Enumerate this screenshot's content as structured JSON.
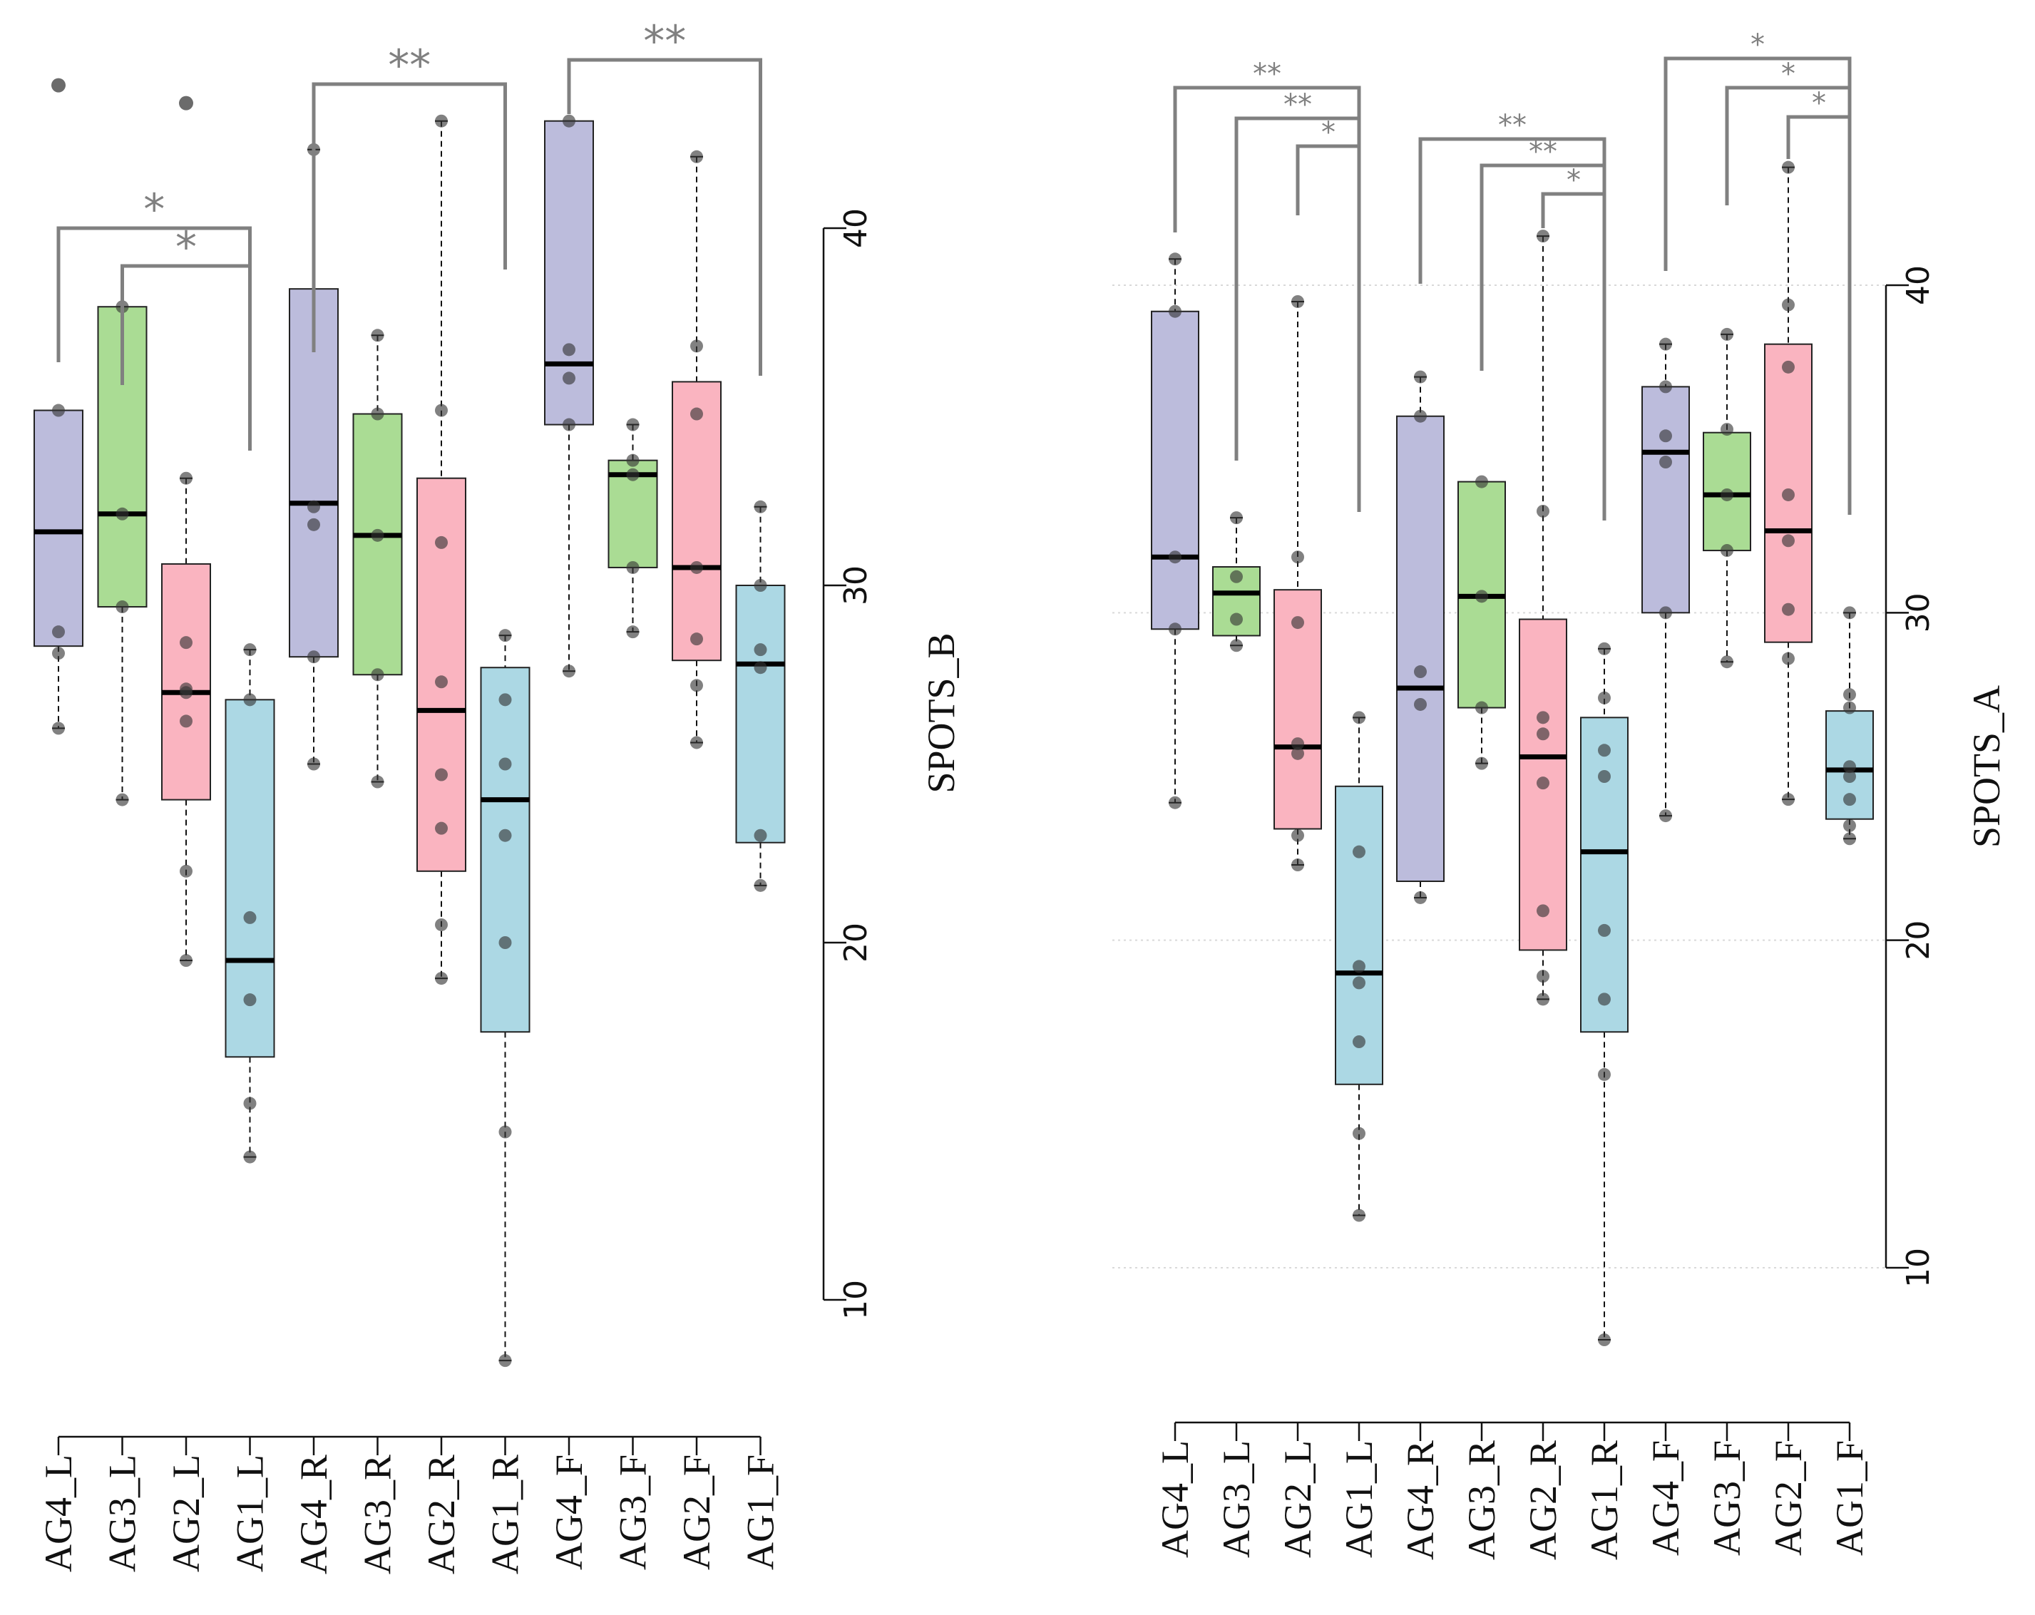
{
  "chart_data": [
    {
      "type": "box",
      "panel": "left",
      "ylabel": "SPOTS_B",
      "ylim": [
        8,
        44
      ],
      "yticks": [
        10,
        20,
        30,
        40
      ],
      "grid": false,
      "categories": [
        "AG4_L",
        "AG3_L",
        "AG2_L",
        "AG1_L",
        "AG4_R",
        "AG3_R",
        "AG2_R",
        "AG1_R",
        "AG4_F",
        "AG3_F",
        "AG2_F",
        "AG1_F"
      ],
      "group_colors": [
        "#bcbcdc",
        "#aadc94",
        "#fab4c0",
        "#acd8e4",
        "#bcbcdc",
        "#aadc94",
        "#fab4c0",
        "#acd8e4",
        "#bcbcdc",
        "#aadc94",
        "#fab4c0",
        "#acd8e4"
      ],
      "boxes": [
        {
          "whisker_low": 26.0,
          "q1": 28.3,
          "median": 31.5,
          "q3": 34.9,
          "whisker_high": 34.9,
          "points": [
            26.0,
            28.1,
            28.7,
            34.9
          ]
        },
        {
          "whisker_low": 24.0,
          "q1": 29.4,
          "median": 32.0,
          "q3": 37.8,
          "whisker_high": 37.8,
          "points": [
            24.0,
            29.4,
            32.0,
            37.8
          ]
        },
        {
          "whisker_low": 19.5,
          "q1": 24.0,
          "median": 27.0,
          "q3": 30.6,
          "whisker_high": 33.0,
          "points": [
            19.5,
            22.0,
            26.2,
            27.0,
            27.1,
            28.4,
            33.0
          ]
        },
        {
          "whisker_low": 14.0,
          "q1": 16.8,
          "median": 19.5,
          "q3": 26.8,
          "whisker_high": 28.2,
          "points": [
            14.0,
            15.5,
            18.4,
            20.7,
            26.8,
            28.2
          ]
        },
        {
          "whisker_low": 25.0,
          "q1": 28.0,
          "median": 32.3,
          "q3": 38.3,
          "whisker_high": 42.2,
          "points": [
            25.0,
            28.0,
            31.7,
            32.2,
            42.2
          ]
        },
        {
          "whisker_low": 24.5,
          "q1": 27.5,
          "median": 31.4,
          "q3": 34.8,
          "whisker_high": 37.0,
          "points": [
            24.5,
            27.5,
            31.4,
            34.8,
            37.0
          ]
        },
        {
          "whisker_low": 19.0,
          "q1": 22.0,
          "median": 26.5,
          "q3": 33.0,
          "whisker_high": 43.0,
          "points": [
            19.0,
            20.5,
            23.2,
            24.7,
            27.3,
            31.2,
            34.9,
            43.0
          ]
        },
        {
          "whisker_low": 8.3,
          "q1": 17.5,
          "median": 24.0,
          "q3": 27.7,
          "whisker_high": 28.6,
          "points": [
            8.3,
            14.7,
            20.0,
            23.0,
            25.0,
            26.8,
            28.6
          ]
        },
        {
          "whisker_low": 27.6,
          "q1": 34.5,
          "median": 36.2,
          "q3": 43.0,
          "whisker_high": 43.0,
          "points": [
            27.6,
            34.5,
            35.8,
            36.6,
            43.0
          ]
        },
        {
          "whisker_low": 28.7,
          "q1": 30.5,
          "median": 33.1,
          "q3": 33.5,
          "whisker_high": 34.5,
          "points": [
            28.7,
            30.5,
            33.1,
            33.5,
            34.5
          ]
        },
        {
          "whisker_low": 25.6,
          "q1": 27.9,
          "median": 30.5,
          "q3": 35.7,
          "whisker_high": 42.0,
          "points": [
            25.6,
            27.2,
            28.5,
            30.5,
            34.8,
            36.7,
            42.0
          ]
        },
        {
          "whisker_low": 21.6,
          "q1": 22.8,
          "median": 27.8,
          "q3": 30.0,
          "whisker_high": 32.2,
          "points": [
            21.6,
            23.0,
            27.7,
            28.2,
            30.0,
            32.2
          ]
        }
      ],
      "outliers": [
        {
          "category": "AG4_L",
          "value": 44.0
        },
        {
          "category": "AG2_L",
          "value": 43.5
        }
      ],
      "significance": [
        {
          "from": "AG4_L",
          "to": "AG1_L",
          "label": "*"
        },
        {
          "from": "AG3_L",
          "to": "AG1_L",
          "label": "*"
        },
        {
          "from": "AG4_R",
          "to": "AG1_R",
          "label": "**"
        },
        {
          "from": "AG4_F",
          "to": "AG1_F",
          "label": "**"
        }
      ]
    },
    {
      "type": "box",
      "panel": "right",
      "ylabel": "SPOTS_A",
      "ylim": [
        9,
        42
      ],
      "yticks": [
        10,
        20,
        30,
        40
      ],
      "grid": true,
      "categories": [
        "AG4_L",
        "AG3_L",
        "AG2_L",
        "AG1_L",
        "AG4_R",
        "AG3_R",
        "AG2_R",
        "AG1_R",
        "AG4_F",
        "AG3_F",
        "AG2_F",
        "AG1_F"
      ],
      "group_colors": [
        "#bcbcdc",
        "#aadc94",
        "#fab4c0",
        "#acd8e4",
        "#bcbcdc",
        "#aadc94",
        "#fab4c0",
        "#acd8e4",
        "#bcbcdc",
        "#aadc94",
        "#fab4c0",
        "#acd8e4"
      ],
      "boxes": [
        {
          "whisker_low": 24.2,
          "q1": 29.5,
          "median": 31.7,
          "q3": 39.2,
          "whisker_high": 40.8,
          "points": [
            24.2,
            29.5,
            31.7,
            39.2,
            40.8
          ]
        },
        {
          "whisker_low": 29.0,
          "q1": 29.3,
          "median": 30.6,
          "q3": 31.4,
          "whisker_high": 32.9,
          "points": [
            29.0,
            29.8,
            31.1,
            32.9
          ]
        },
        {
          "whisker_low": 22.3,
          "q1": 23.4,
          "median": 25.9,
          "q3": 30.7,
          "whisker_high": 39.5,
          "points": [
            22.3,
            23.2,
            25.7,
            26.0,
            29.7,
            31.7,
            39.5
          ]
        },
        {
          "whisker_low": 11.6,
          "q1": 15.6,
          "median": 19.0,
          "q3": 24.7,
          "whisker_high": 26.8,
          "points": [
            11.6,
            14.1,
            16.9,
            18.7,
            19.2,
            22.7,
            26.8
          ]
        },
        {
          "whisker_low": 21.3,
          "q1": 21.8,
          "median": 27.7,
          "q3": 36.0,
          "whisker_high": 37.2,
          "points": [
            21.3,
            27.2,
            28.2,
            36.0,
            37.2
          ]
        },
        {
          "whisker_low": 25.4,
          "q1": 27.1,
          "median": 30.5,
          "q3": 34.0,
          "whisker_high": 34.0,
          "points": [
            25.4,
            27.1,
            30.5,
            34.0
          ]
        },
        {
          "whisker_low": 18.2,
          "q1": 19.7,
          "median": 25.6,
          "q3": 29.8,
          "whisker_high": 41.5,
          "points": [
            18.2,
            18.9,
            20.9,
            24.8,
            26.3,
            26.8,
            33.1,
            41.5
          ]
        },
        {
          "whisker_low": 7.8,
          "q1": 17.2,
          "median": 22.7,
          "q3": 26.8,
          "whisker_high": 28.9,
          "points": [
            7.8,
            15.9,
            18.2,
            20.3,
            25.0,
            25.8,
            27.4,
            28.9
          ]
        },
        {
          "whisker_low": 23.8,
          "q1": 30.0,
          "median": 34.9,
          "q3": 36.9,
          "whisker_high": 38.2,
          "points": [
            23.8,
            30.0,
            34.6,
            35.4,
            36.9,
            38.2
          ]
        },
        {
          "whisker_low": 28.5,
          "q1": 31.9,
          "median": 33.6,
          "q3": 35.5,
          "whisker_high": 38.5,
          "points": [
            28.5,
            31.9,
            33.6,
            35.6,
            38.5
          ]
        },
        {
          "whisker_low": 24.3,
          "q1": 29.1,
          "median": 32.5,
          "q3": 38.2,
          "whisker_high": 43.6,
          "points": [
            24.3,
            28.6,
            30.1,
            32.2,
            33.6,
            37.5,
            39.4,
            43.6
          ]
        },
        {
          "whisker_low": 23.1,
          "q1": 23.7,
          "median": 25.2,
          "q3": 27.0,
          "whisker_high": 30.0,
          "points": [
            23.1,
            23.5,
            24.3,
            25.0,
            25.3,
            27.1,
            27.5,
            30.0
          ]
        }
      ],
      "outliers": [],
      "significance": [
        {
          "from": "AG4_L",
          "to": "AG1_L",
          "label": "**"
        },
        {
          "from": "AG3_L",
          "to": "AG1_L",
          "label": "**"
        },
        {
          "from": "AG2_L",
          "to": "AG1_L",
          "label": "*"
        },
        {
          "from": "AG4_R",
          "to": "AG1_R",
          "label": "**"
        },
        {
          "from": "AG3_R",
          "to": "AG1_R",
          "label": "**"
        },
        {
          "from": "AG2_R",
          "to": "AG1_R",
          "label": "*"
        },
        {
          "from": "AG4_F",
          "to": "AG1_F",
          "label": "*"
        },
        {
          "from": "AG3_F",
          "to": "AG1_F",
          "label": "*"
        },
        {
          "from": "AG2_F",
          "to": "AG1_F",
          "label": "*"
        }
      ]
    }
  ]
}
